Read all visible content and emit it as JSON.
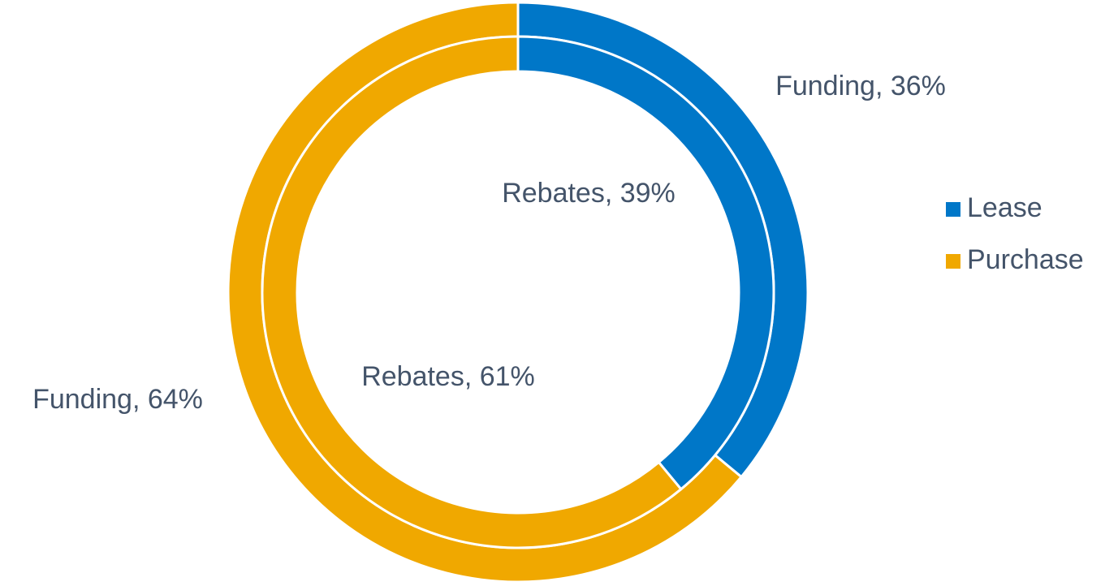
{
  "chart_data": {
    "type": "doughnut",
    "categories": [
      "Lease",
      "Purchase"
    ],
    "colors": [
      "#0077c8",
      "#f0a800"
    ],
    "series": [
      {
        "name": "Funding",
        "values": [
          36,
          64
        ],
        "value_labels": [
          "Funding, 36%",
          "Funding, 64%"
        ]
      },
      {
        "name": "Rebates",
        "values": [
          39,
          61
        ],
        "value_labels": [
          "Rebates, 39%",
          "Rebates, 61%"
        ]
      }
    ],
    "legend": "right"
  }
}
